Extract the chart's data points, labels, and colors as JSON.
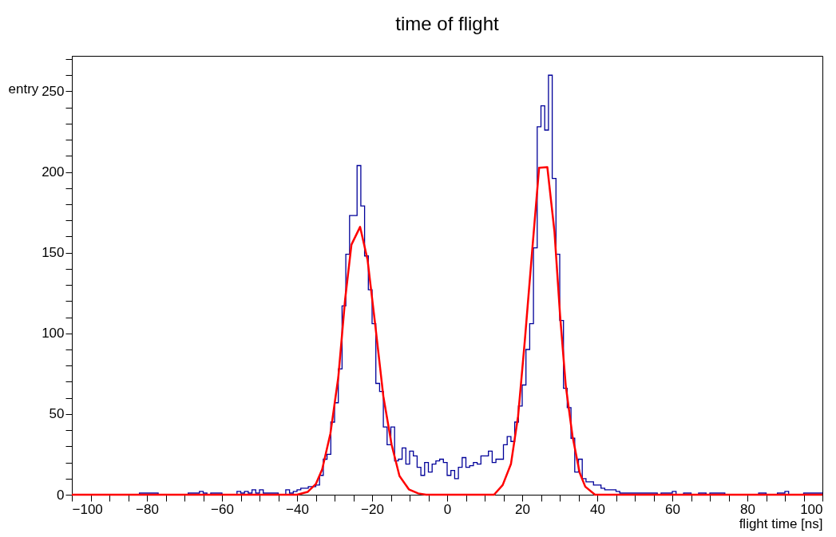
{
  "chart_data": {
    "type": "histogram",
    "title": "time of flight",
    "xlabel": "flight time [ns]",
    "ylabel": "entry",
    "xlim": [
      -100,
      100
    ],
    "ylim": [
      0,
      272
    ],
    "xticks": [
      -100,
      {
        "value": -95,
        "label": null
      },
      {
        "value": -90,
        "label": null
      },
      {
        "value": -85,
        "label": null
      },
      -80,
      {
        "value": -75,
        "label": null
      },
      {
        "value": -70,
        "label": null
      },
      {
        "value": -65,
        "label": null
      },
      -60,
      {
        "value": -55,
        "label": null
      },
      {
        "value": -50,
        "label": null
      },
      {
        "value": -45,
        "label": null
      },
      -40,
      {
        "value": -35,
        "label": null
      },
      {
        "value": -30,
        "label": null
      },
      {
        "value": -25,
        "label": null
      },
      -20,
      {
        "value": -15,
        "label": null
      },
      {
        "value": -10,
        "label": null
      },
      {
        "value": -5,
        "label": null
      },
      0,
      {
        "value": 5,
        "label": null
      },
      {
        "value": 10,
        "label": null
      },
      {
        "value": 15,
        "label": null
      },
      20,
      {
        "value": 25,
        "label": null
      },
      {
        "value": 30,
        "label": null
      },
      {
        "value": 35,
        "label": null
      },
      40,
      {
        "value": 45,
        "label": null
      },
      {
        "value": 50,
        "label": null
      },
      {
        "value": 55,
        "label": null
      },
      60,
      {
        "value": 65,
        "label": null
      },
      {
        "value": 70,
        "label": null
      },
      {
        "value": 75,
        "label": null
      },
      80,
      {
        "value": 85,
        "label": null
      },
      {
        "value": 90,
        "label": null
      },
      {
        "value": 95,
        "label": null
      },
      100
    ],
    "yticks": [
      0,
      {
        "value": 10,
        "label": null
      },
      {
        "value": 20,
        "label": null
      },
      {
        "value": 30,
        "label": null
      },
      {
        "value": 40,
        "label": null
      },
      50,
      {
        "value": 60,
        "label": null
      },
      {
        "value": 70,
        "label": null
      },
      {
        "value": 80,
        "label": null
      },
      {
        "value": 90,
        "label": null
      },
      100,
      {
        "value": 110,
        "label": null
      },
      {
        "value": 120,
        "label": null
      },
      {
        "value": 130,
        "label": null
      },
      {
        "value": 140,
        "label": null
      },
      150,
      {
        "value": 160,
        "label": null
      },
      {
        "value": 170,
        "label": null
      },
      {
        "value": 180,
        "label": null
      },
      {
        "value": 190,
        "label": null
      },
      200,
      {
        "value": 210,
        "label": null
      },
      {
        "value": 220,
        "label": null
      },
      {
        "value": 230,
        "label": null
      },
      {
        "value": 240,
        "label": null
      },
      250,
      {
        "value": 260,
        "label": null
      },
      {
        "value": 270,
        "label": null
      }
    ],
    "grid": false,
    "legend": false,
    "series": [
      {
        "color": "#000099",
        "bins": [
          -100,
          -99,
          -98,
          -97,
          -96,
          -95,
          -94,
          -93,
          -92,
          -91,
          -90,
          -89,
          -88,
          -87,
          -86,
          -85,
          -84,
          -83,
          -82,
          -81,
          -80,
          -79,
          -78,
          -77,
          -76,
          -75,
          -74,
          -73,
          -72,
          -71,
          -70,
          -69,
          -68,
          -67,
          -66,
          -65,
          -64,
          -63,
          -62,
          -61,
          -60,
          -59,
          -58,
          -57,
          -56,
          -55,
          -54,
          -53,
          -52,
          -51,
          -50,
          -49,
          -48,
          -47,
          -46,
          -45,
          -44,
          -43,
          -42,
          -41,
          -40,
          -39,
          -38,
          -37,
          -36,
          -35,
          -34,
          -33,
          -32,
          -31,
          -30,
          -29,
          -28,
          -27,
          -26,
          -25,
          -24,
          -23,
          -22,
          -21,
          -20,
          -19,
          -18,
          -17,
          -16,
          -15,
          -14,
          -13,
          -12,
          -11,
          -10,
          -9,
          -8,
          -7,
          -6,
          -5,
          -4,
          -3,
          -2,
          -1,
          0,
          1,
          2,
          3,
          4,
          5,
          6,
          7,
          8,
          9,
          10,
          11,
          12,
          13,
          14,
          15,
          16,
          17,
          18,
          19,
          20,
          21,
          22,
          23,
          24,
          25,
          26,
          27,
          28,
          29,
          30,
          31,
          32,
          33,
          34,
          35,
          36,
          37,
          38,
          39,
          40,
          41,
          42,
          43,
          44,
          45,
          46,
          47,
          48,
          49,
          50,
          51,
          52,
          53,
          54,
          55,
          56,
          57,
          58,
          59,
          60,
          61,
          62,
          63,
          64,
          65,
          66,
          67,
          68,
          69,
          70,
          71,
          72,
          73,
          74,
          75,
          76,
          77,
          78,
          79,
          80,
          81,
          82,
          83,
          84,
          85,
          86,
          87,
          88,
          89,
          90,
          91,
          92,
          93,
          94,
          95,
          96,
          97,
          98,
          99,
          100
        ],
        "values": [
          0,
          0,
          0,
          0,
          0,
          0,
          0,
          0,
          0,
          0,
          0,
          0,
          0,
          0,
          0,
          0,
          0,
          0,
          1,
          1,
          1,
          1,
          1,
          0,
          0,
          0,
          0,
          0,
          0,
          0,
          0,
          1,
          1,
          1,
          2,
          1,
          0,
          1,
          1,
          1,
          0,
          0,
          0,
          0,
          2,
          1,
          2,
          1,
          3,
          1,
          3,
          1,
          1,
          1,
          1,
          0,
          0,
          3,
          1,
          2,
          3,
          4,
          4,
          5,
          5,
          6,
          12,
          22,
          25,
          45,
          57,
          78,
          117,
          149,
          173,
          173,
          204,
          179,
          148,
          127,
          106,
          69,
          64,
          42,
          31,
          42,
          21,
          22,
          29,
          19,
          27,
          24,
          17,
          12,
          20,
          14,
          19,
          21,
          22,
          20,
          12,
          15,
          10,
          17,
          23,
          17,
          18,
          20,
          19,
          24,
          24,
          27,
          20,
          22,
          22,
          31,
          36,
          33,
          45,
          55,
          68,
          90,
          106,
          153,
          228,
          241,
          226,
          260,
          196,
          149,
          108,
          66,
          54,
          35,
          14,
          22,
          10,
          8,
          8,
          6,
          6,
          4,
          3,
          3,
          3,
          2,
          1,
          1,
          1,
          1,
          1,
          1,
          1,
          1,
          1,
          1,
          0,
          1,
          1,
          1,
          2,
          0,
          0,
          1,
          1,
          0,
          0,
          1,
          1,
          0,
          1,
          1,
          1,
          1,
          0,
          0,
          0,
          0,
          0,
          0,
          0,
          0,
          0,
          1,
          1,
          0,
          0,
          0,
          1,
          1,
          2,
          0,
          0,
          0,
          0,
          1,
          1,
          1,
          1,
          1
        ]
      },
      {
        "type": "line",
        "color": "#ff0000",
        "x": [
          -100,
          -40,
          -37.2,
          -35,
          -33.3,
          -31.1,
          -29,
          -27.2,
          -25.5,
          -23.2,
          -21.2,
          -19.1,
          -17,
          -14.8,
          -12.7,
          -10.2,
          -7.7,
          -5.6,
          12.5,
          14.8,
          17,
          18.9,
          20.7,
          22.6,
          24.5,
          26.7,
          28.6,
          30.1,
          31.6,
          33.4,
          35.3,
          36.8,
          39.4,
          100
        ],
        "values": [
          0,
          0,
          1.7,
          6.6,
          15.7,
          38,
          72.8,
          120.7,
          155,
          166,
          145.5,
          104,
          61,
          31,
          11.6,
          3.3,
          0.8,
          0,
          0,
          6,
          19,
          48.6,
          95.5,
          149.5,
          202.6,
          203,
          163,
          111,
          67.7,
          36.4,
          13.7,
          5,
          0,
          0
        ]
      }
    ]
  }
}
